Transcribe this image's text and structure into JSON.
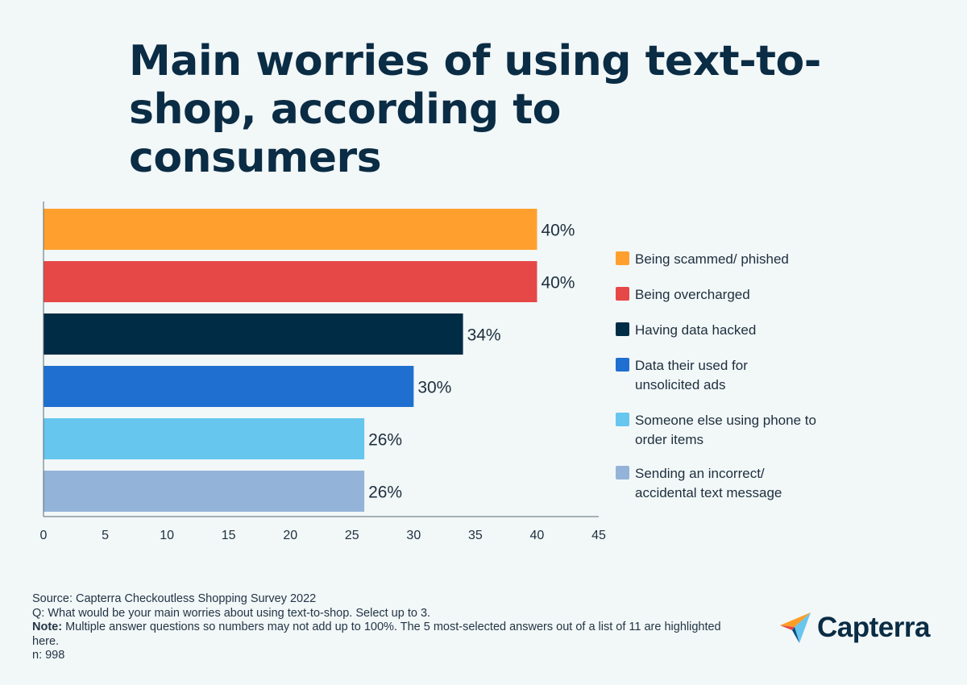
{
  "title": "Main worries of using text-to-shop, according to consumers",
  "chart_data": {
    "type": "bar",
    "orientation": "horizontal",
    "title": "Main worries of using text-to-shop, according to consumers",
    "categories": [
      "Being scammed/ phished",
      "Being overcharged",
      "Having data hacked",
      "Data their used for unsolicited ads",
      "Someone else using phone to order items",
      "Sending an incorrect/ accidental text message"
    ],
    "values": [
      40,
      40,
      34,
      30,
      26,
      26
    ],
    "data_labels": [
      "40%",
      "40%",
      "34%",
      "30%",
      "26%",
      "26%"
    ],
    "colors": [
      "#ffa02e",
      "#e64848",
      "#002c45",
      "#1f6fd1",
      "#66c6ee",
      "#94b3d9"
    ],
    "xlim": [
      0,
      45
    ],
    "xticks": [
      0,
      5,
      10,
      15,
      20,
      25,
      30,
      35,
      40,
      45
    ],
    "xlabel": "",
    "ylabel": "",
    "grid": false,
    "legend_position": "right"
  },
  "legend": [
    {
      "label": "Being scammed/ phished",
      "color": "#ffa02e"
    },
    {
      "label": "Being overcharged",
      "color": "#e64848"
    },
    {
      "label": "Having data hacked",
      "color": "#002c45"
    },
    {
      "label": "Data their used for\nunsolicited ads",
      "color": "#1f6fd1"
    },
    {
      "label": "Someone else using phone to\norder items",
      "color": "#66c6ee"
    },
    {
      "label": "Sending an incorrect/\naccidental text message",
      "color": "#94b3d9"
    }
  ],
  "footer": {
    "source": "Source: Capterra Checkoutless Shopping Survey 2022",
    "question": "Q: What would be your main worries about using text-to-shop. Select up to 3.",
    "note_label": "Note:",
    "note_text": " Multiple answer questions so numbers may not add up to 100%. The 5 most-selected answers out of a list of 11 are highlighted here.",
    "n": "n: 998"
  },
  "logo": {
    "text": "Capterra",
    "colors": [
      "#ff9d28",
      "#68c5ed",
      "#044d80",
      "#e54747"
    ]
  }
}
